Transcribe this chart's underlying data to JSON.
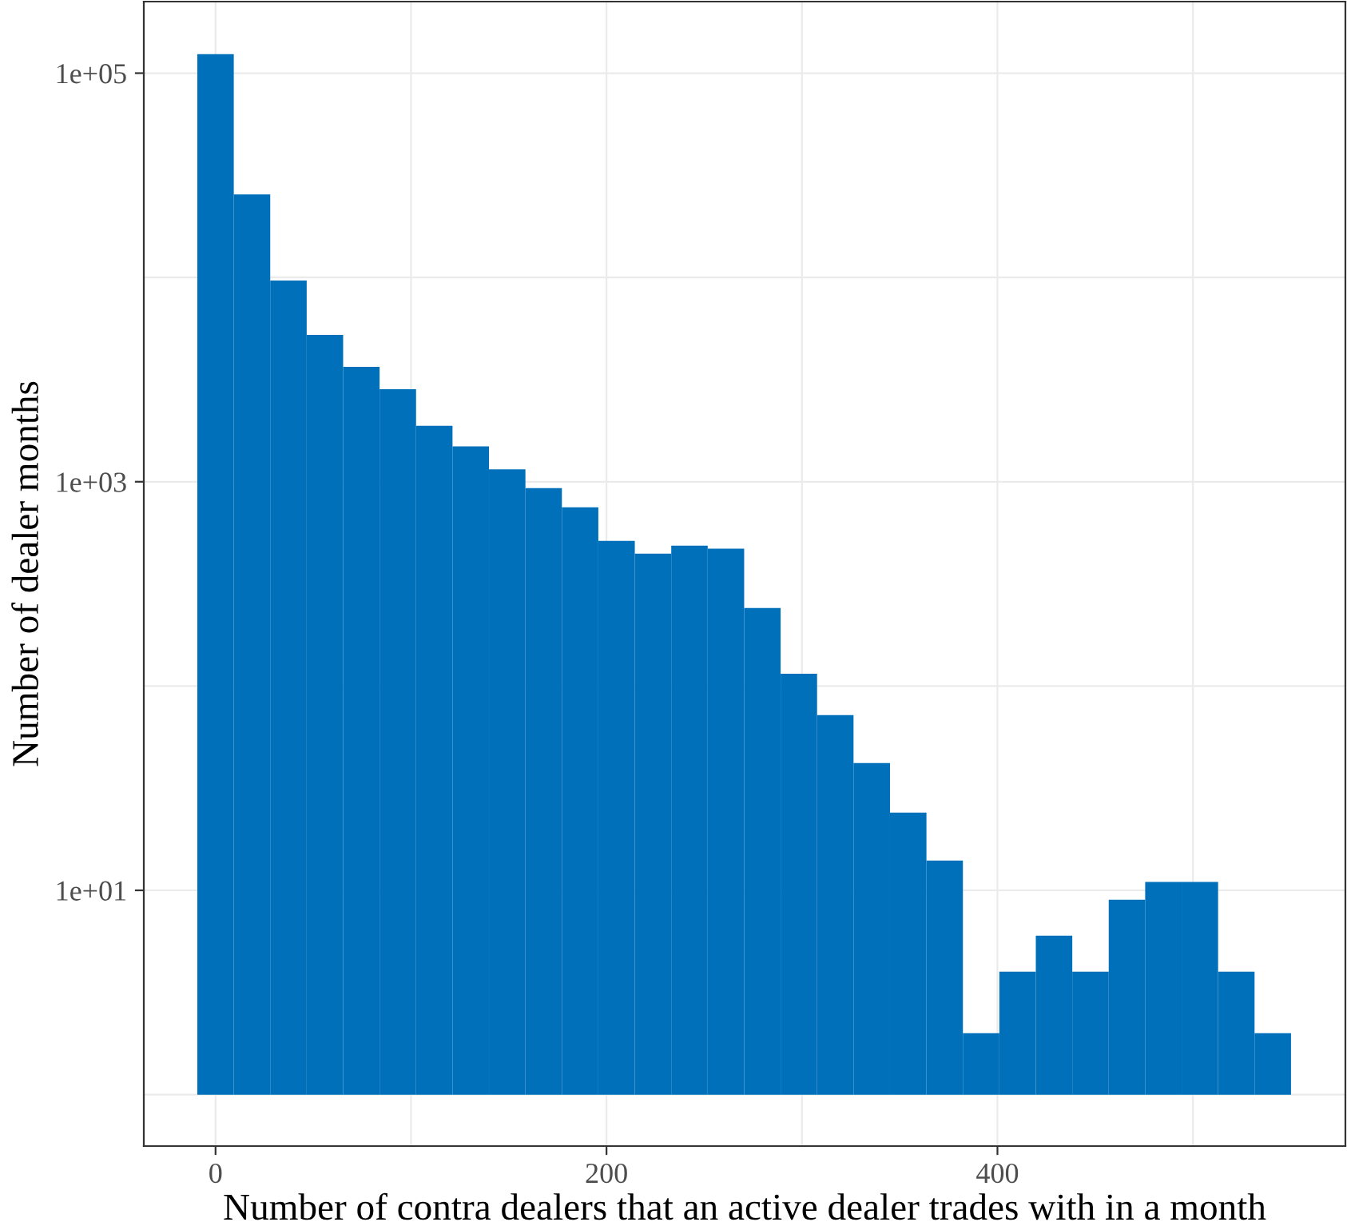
{
  "chart_data": {
    "type": "histogram",
    "xlabel": "Number of contra dealers that an active dealer trades with in a month",
    "ylabel": "Number of dealer months",
    "color": "#0070bb",
    "log": "y",
    "grid": true,
    "bins": [
      -9.325,
      9.325,
      27.975,
      46.625,
      65.275,
      83.925,
      102.575,
      121.225,
      139.875,
      158.525,
      177.175,
      195.825,
      214.475,
      233.125,
      251.775,
      270.425,
      289.075,
      307.725,
      326.375,
      345.025,
      363.675,
      382.325,
      400.975,
      419.625,
      438.275,
      456.925,
      475.575,
      494.225,
      512.875,
      531.525,
      550.175
    ],
    "values": [
      124000,
      25500,
      9650,
      5240,
      3650,
      2840,
      1880,
      1490,
      1150,
      930,
      750,
      514,
      445,
      487,
      470,
      241,
      115,
      72,
      42,
      24,
      14,
      2,
      4,
      6,
      4,
      9,
      11,
      11,
      4,
      2
    ],
    "xlim": [
      -36.7,
      578
    ],
    "xticks": [
      0,
      {
        "value": 100,
        "label": null
      },
      200,
      {
        "value": 300,
        "label": null
      },
      400,
      {
        "value": 500,
        "label": null
      }
    ],
    "ylim": [
      0.56,
      224000
    ],
    "yticks": [
      {
        "value": 1,
        "label": null
      },
      {
        "value": 10,
        "label": "1e+01"
      },
      {
        "value": 100,
        "label": null
      },
      {
        "value": 1000,
        "label": "1e+03"
      },
      {
        "value": 10000,
        "label": null
      },
      {
        "value": 100000,
        "label": "1e+05"
      }
    ]
  }
}
